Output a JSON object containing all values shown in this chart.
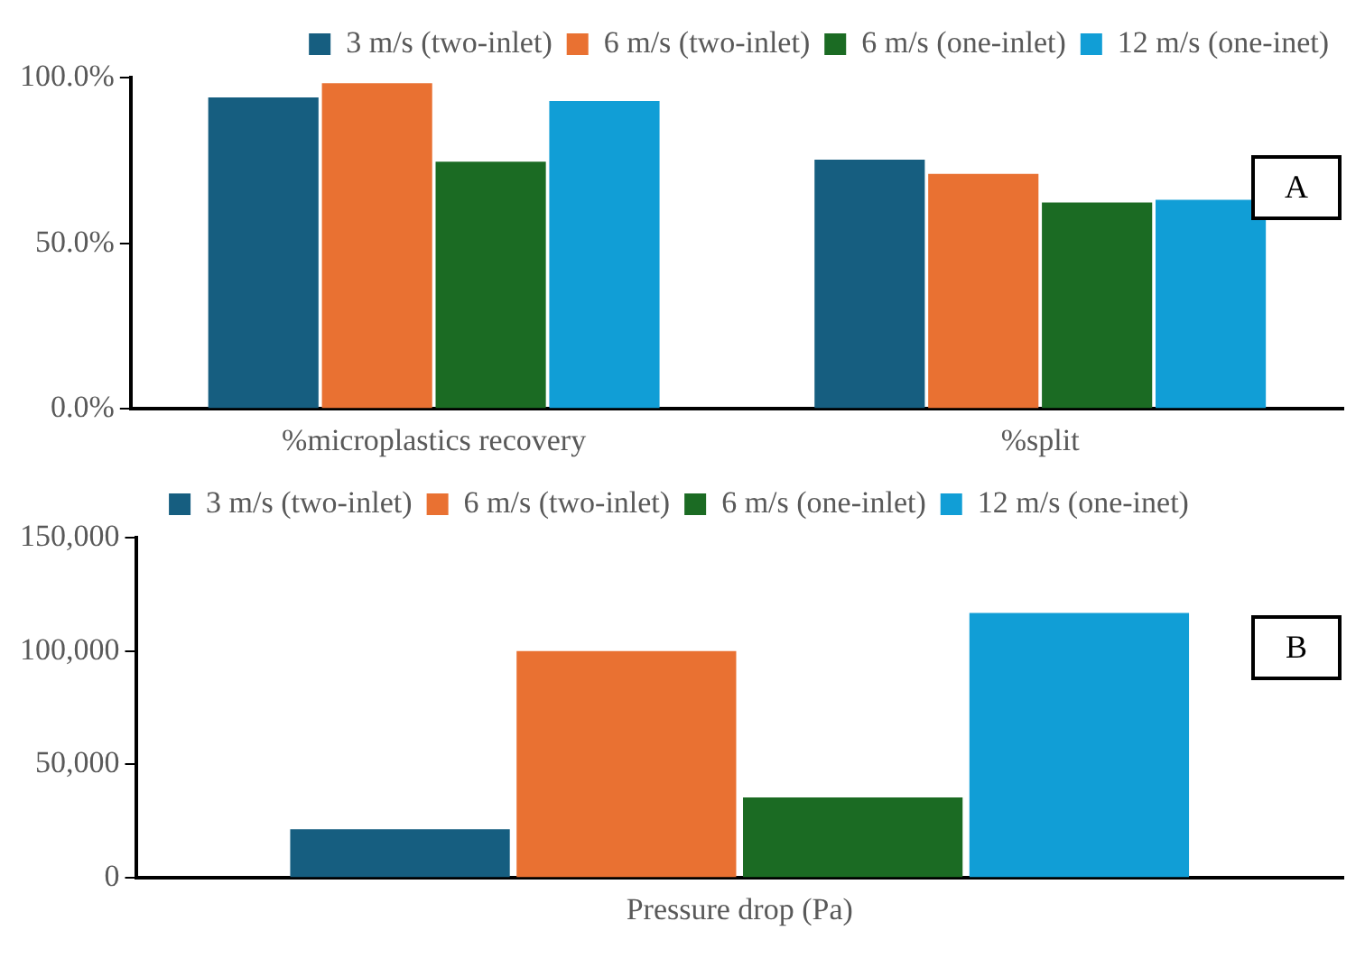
{
  "chart_data": [
    {
      "type": "bar",
      "categories": [
        "%microplastics recovery",
        "%split"
      ],
      "series": [
        {
          "name": "3 m/s (two-inlet)",
          "color": "#165e80",
          "values": [
            94.0,
            75.2
          ]
        },
        {
          "name": "6 m/s (two-inlet)",
          "color": "#e97132",
          "values": [
            98.3,
            70.9
          ]
        },
        {
          "name": "6 m/s (one-inlet)",
          "color": "#1b6b23",
          "values": [
            74.6,
            62.3
          ]
        },
        {
          "name": "12 m/s (one-inet)",
          "color": "#119ed6",
          "values": [
            92.9,
            63.1
          ]
        }
      ],
      "ylim": [
        0,
        100
      ],
      "yticks": [
        {
          "value": 0,
          "label": "0.0%"
        },
        {
          "value": 50,
          "label": "50.0%"
        },
        {
          "value": 100,
          "label": "100.0%"
        }
      ],
      "grid": false,
      "legend": "top right",
      "annotations": [
        "A"
      ]
    },
    {
      "type": "bar",
      "categories": [
        "Pressure drop (Pa)"
      ],
      "series": [
        {
          "name": "3 m/s (two-inlet)",
          "color": "#165e80",
          "values": [
            21500
          ]
        },
        {
          "name": "6 m/s (two-inlet)",
          "color": "#e97132",
          "values": [
            100000
          ]
        },
        {
          "name": "6 m/s (one-inlet)",
          "color": "#1b6b23",
          "values": [
            35500
          ]
        },
        {
          "name": "12 m/s (one-inet)",
          "color": "#119ed6",
          "values": [
            116800
          ]
        }
      ],
      "ylim": [
        0,
        150000
      ],
      "yticks": [
        0,
        {
          "value": 50000,
          "label": "50,000"
        },
        {
          "value": 100000,
          "label": "100,000"
        },
        {
          "value": 150000,
          "label": "150,000"
        }
      ],
      "grid": false,
      "legend": "top",
      "annotations": [
        "B"
      ]
    }
  ]
}
